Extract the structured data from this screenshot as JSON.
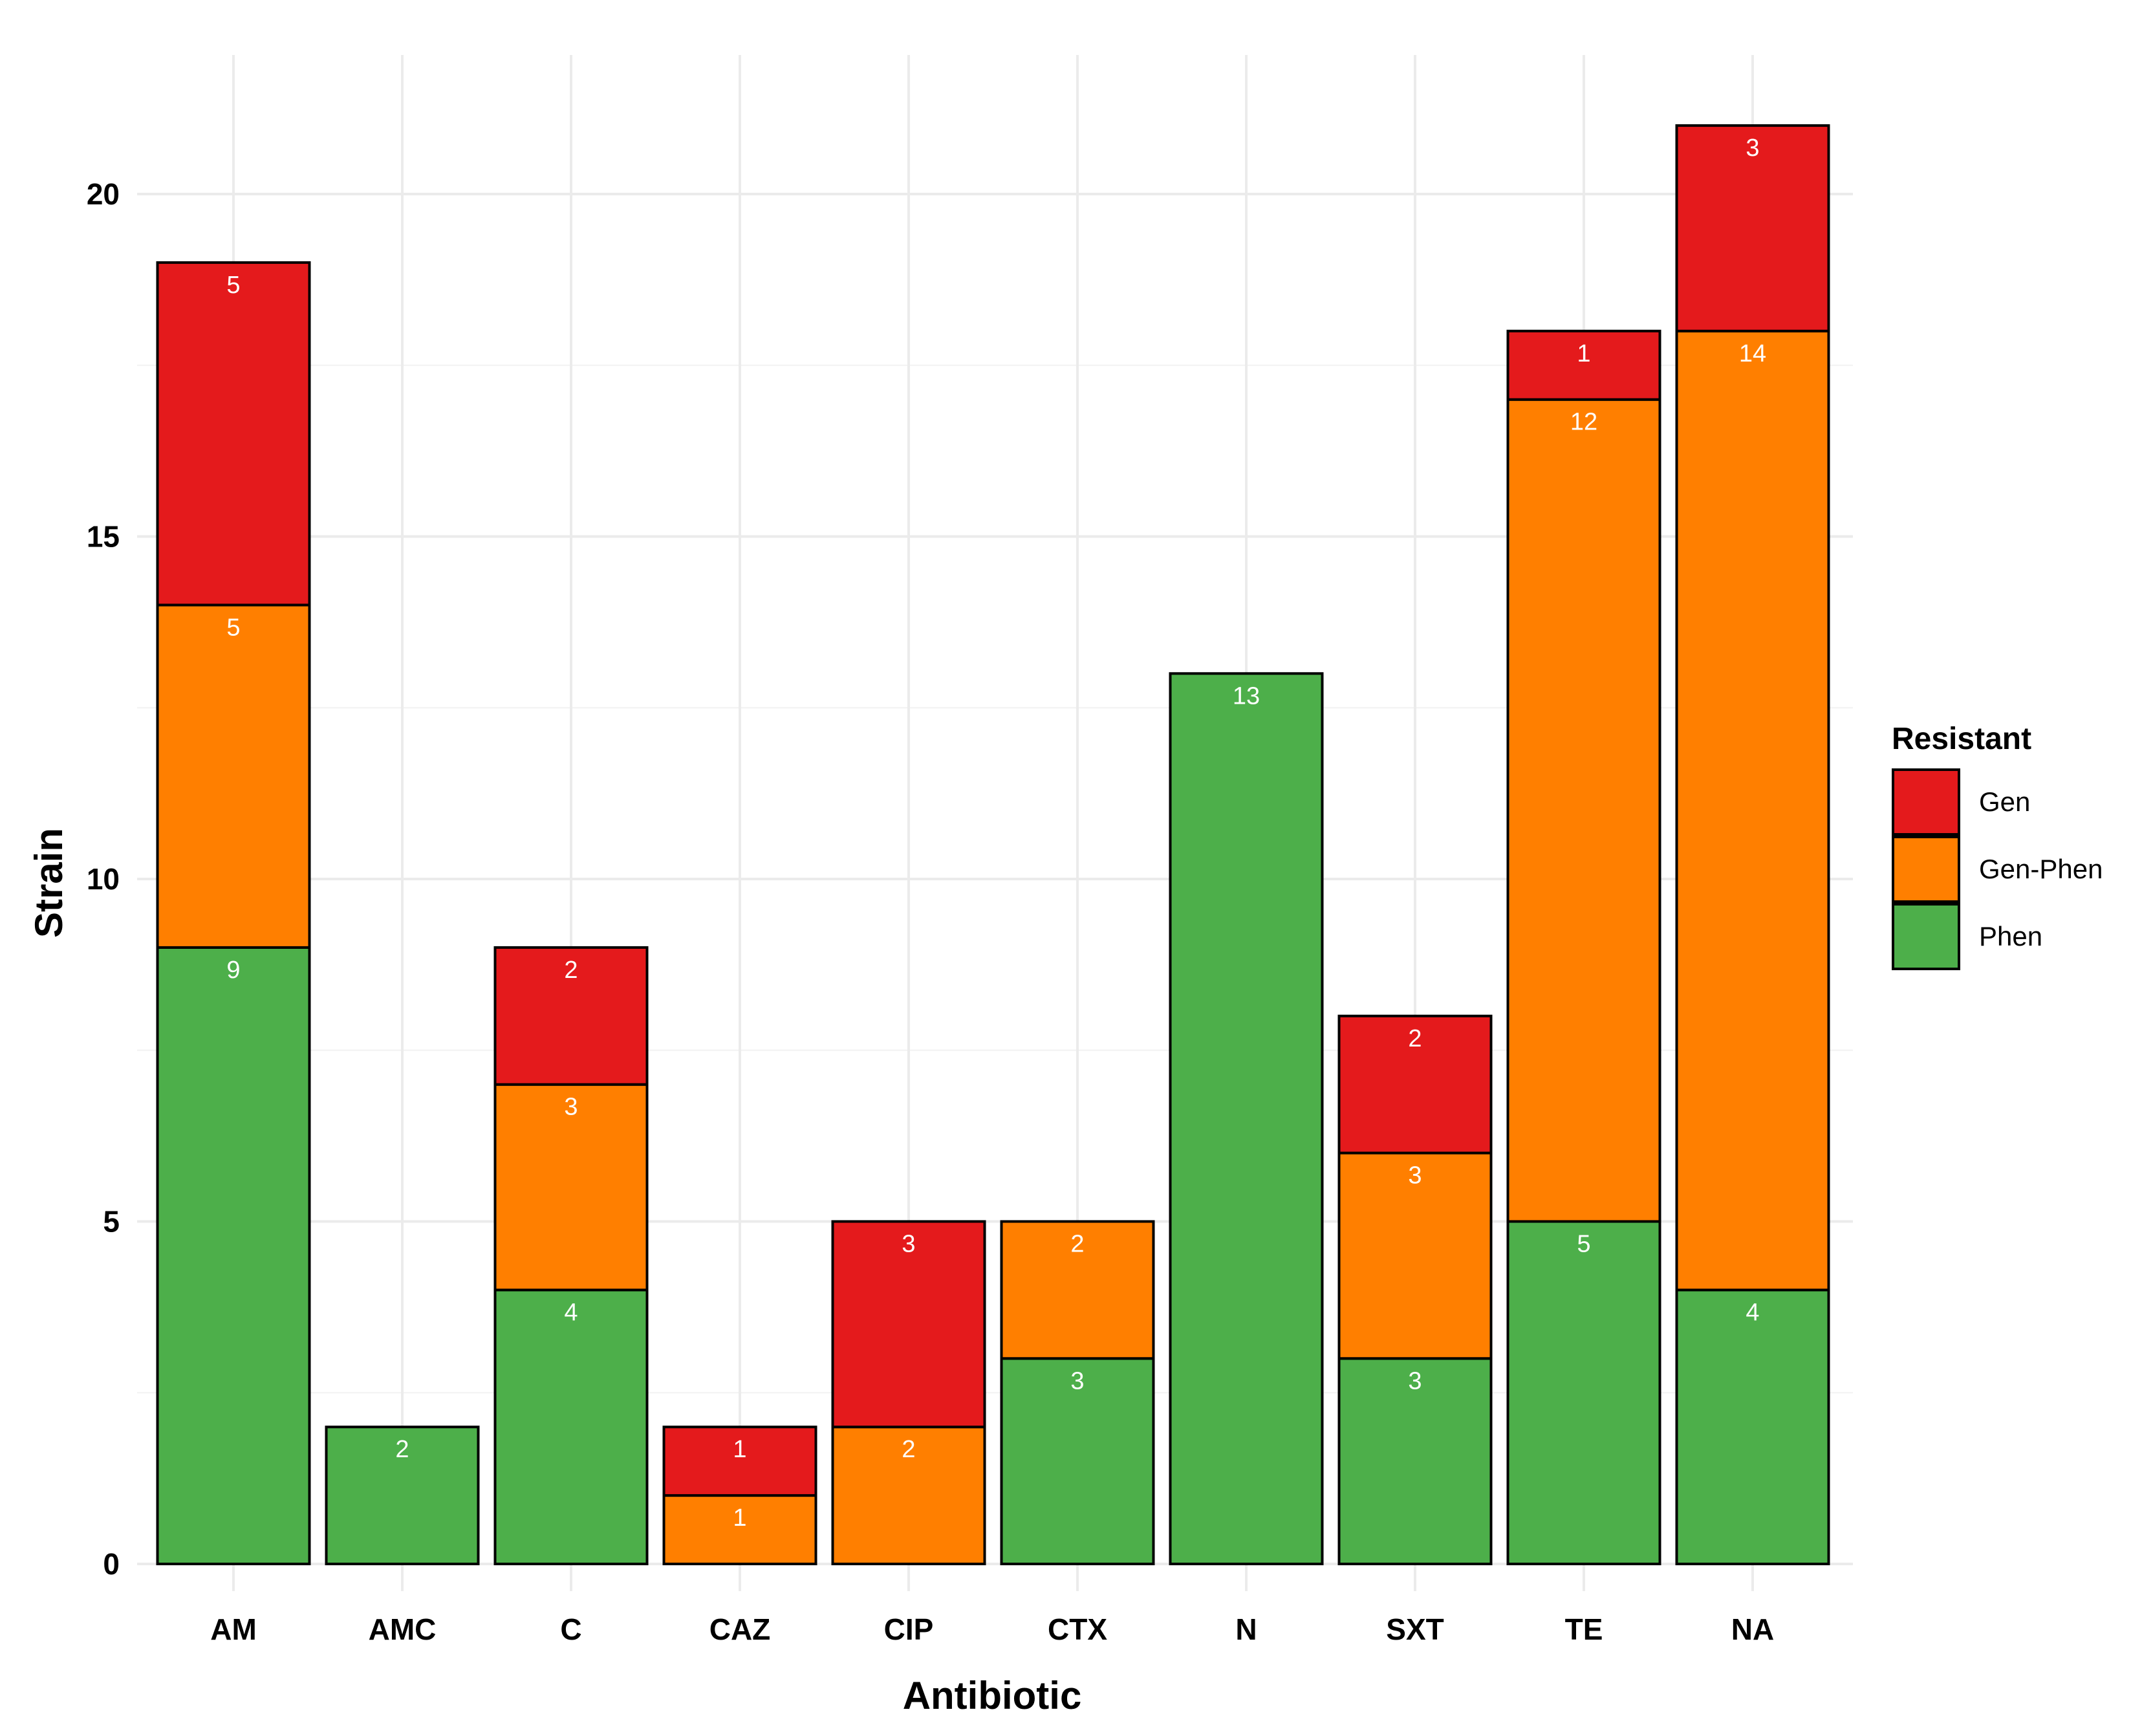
{
  "chart_data": {
    "type": "bar",
    "stacked": true,
    "title": "",
    "xlabel": "Antibiotic",
    "ylabel": "Strain",
    "ylim": [
      0,
      21
    ],
    "yticks": [
      0,
      5,
      10,
      15,
      20
    ],
    "grid": true,
    "categories": [
      "AM",
      "AMC",
      "C",
      "CAZ",
      "CIP",
      "CTX",
      "N",
      "SXT",
      "TE",
      "NA"
    ],
    "series": [
      {
        "name": "Phen",
        "color": "#4daf4a",
        "values": [
          9,
          2,
          4,
          0,
          0,
          3,
          13,
          3,
          5,
          4
        ]
      },
      {
        "name": "Gen-Phen",
        "color": "#ff7f00",
        "values": [
          5,
          0,
          3,
          1,
          2,
          2,
          0,
          3,
          12,
          14
        ]
      },
      {
        "name": "Gen",
        "color": "#e41a1c",
        "values": [
          5,
          0,
          2,
          1,
          3,
          0,
          0,
          2,
          1,
          3
        ]
      }
    ],
    "legend": {
      "title": "Resistant",
      "position": "right",
      "entries": [
        "Gen",
        "Gen-Phen",
        "Phen"
      ]
    }
  }
}
